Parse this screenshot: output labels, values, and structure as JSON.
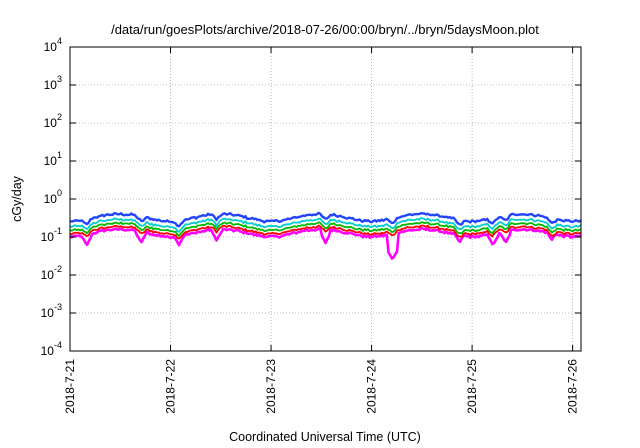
{
  "chart_data": {
    "type": "line",
    "title": "/data/run/goesPlots/archive/2018-07-26/00:00/bryn/../bryn/5daysMoon.plot",
    "xlabel": "Coordinated Universal Time (UTC)",
    "ylabel": "cGy/day",
    "yscale": "log",
    "ylim": [
      0.0001,
      10000
    ],
    "y_ticks": [
      {
        "value": 0.0001,
        "base": "10",
        "exp": "-4"
      },
      {
        "value": 0.001,
        "base": "10",
        "exp": "-3"
      },
      {
        "value": 0.01,
        "base": "10",
        "exp": "-2"
      },
      {
        "value": 0.1,
        "base": "10",
        "exp": "-1"
      },
      {
        "value": 1,
        "base": "10",
        "exp": "0"
      },
      {
        "value": 10,
        "base": "10",
        "exp": "1"
      },
      {
        "value": 100,
        "base": "10",
        "exp": "2"
      },
      {
        "value": 1000,
        "base": "10",
        "exp": "3"
      },
      {
        "value": 10000,
        "base": "10",
        "exp": "4"
      }
    ],
    "x_ticks": [
      "2018-7-21",
      "2018-7-22",
      "2018-7-23",
      "2018-7-24",
      "2018-7-25",
      "2018-7-26"
    ],
    "xlim": [
      "2018-07-21 00:00",
      "2018-07-26 02:00"
    ],
    "grid": true,
    "legend": "none",
    "series": [
      {
        "color": "#ff00ff",
        "base": 0.13,
        "dips": [
          [
            "2018-07-21 04:00",
            0.06
          ],
          [
            "2018-07-21 17:00",
            0.07
          ],
          [
            "2018-07-22 02:00",
            0.06
          ],
          [
            "2018-07-22 11:00",
            0.08
          ],
          [
            "2018-07-23 13:00",
            0.07
          ],
          [
            "2018-07-24 05:00",
            0.025
          ],
          [
            "2018-07-24 21:00",
            0.07
          ],
          [
            "2018-07-25 05:00",
            0.06
          ],
          [
            "2018-07-25 08:00",
            0.07
          ],
          [
            "2018-07-25 19:00",
            0.08
          ]
        ]
      },
      {
        "color": "#ff0000",
        "base": 0.155
      },
      {
        "color": "#00bb00",
        "base": 0.19
      },
      {
        "color": "#00cccc",
        "base": 0.24
      },
      {
        "color": "#2244ff",
        "base": 0.33
      }
    ]
  }
}
